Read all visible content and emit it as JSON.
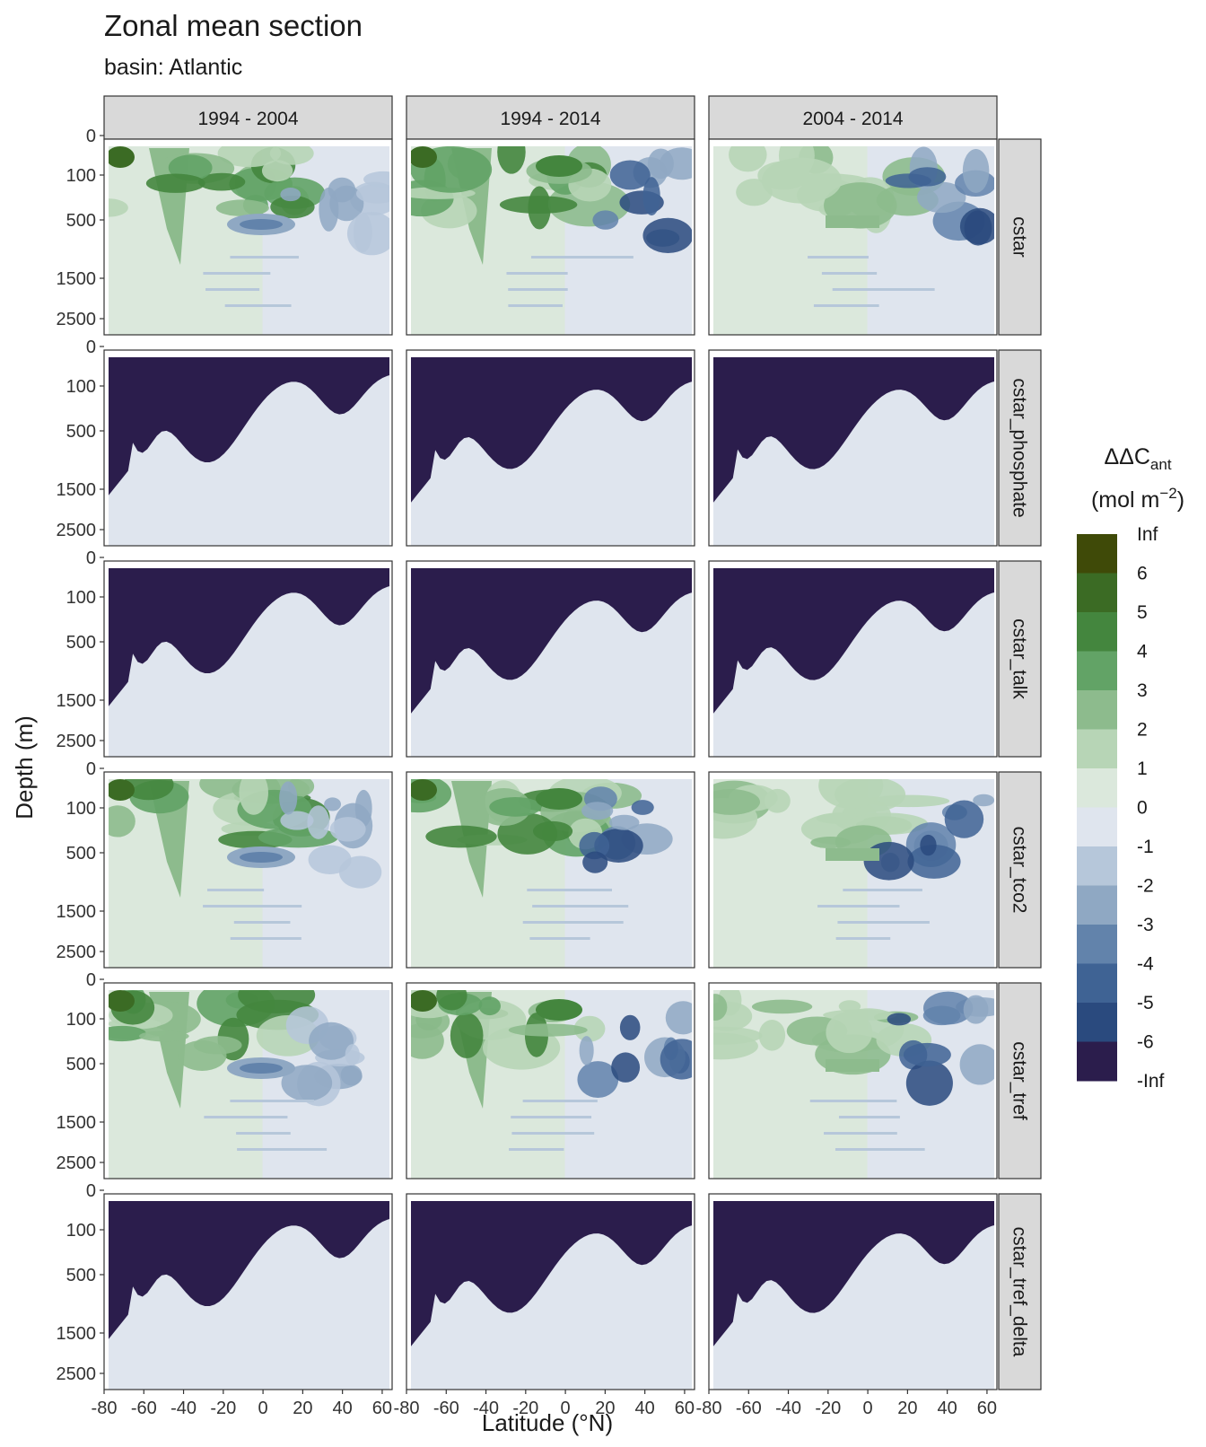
{
  "chart_data": {
    "type": "heatmap",
    "title": "Zonal mean section",
    "subtitle": "basin: Atlantic",
    "xlabel": "Latitude (°N)",
    "ylabel": "Depth (m)",
    "x_ticks": [
      "-80",
      "-60",
      "-40",
      "-20",
      "0",
      "20",
      "40",
      "60"
    ],
    "x_tick_values": [
      -80,
      -60,
      -40,
      -20,
      0,
      20,
      40,
      60
    ],
    "xlim": [
      -80,
      65
    ],
    "y_ticks": [
      "0",
      "100",
      "500",
      "1500",
      "2500"
    ],
    "y_tick_values": [
      0,
      100,
      500,
      1500,
      2500
    ],
    "y_scale": "sqrt-like (reversed)",
    "column_facets": [
      "1994 - 2004",
      "1994 - 2014",
      "2004 - 2014"
    ],
    "row_facets": [
      "cstar",
      "cstar_phosphate",
      "cstar_talk",
      "cstar_tco2",
      "cstar_tref",
      "cstar_tref_delta"
    ],
    "legend": {
      "title_main": "ΔΔC",
      "title_sub": "ant",
      "unit_prefix": "(mol m",
      "unit_sup": "−2",
      "unit_suffix": ")",
      "placement": "right",
      "breaks": [
        "Inf",
        "6",
        "5",
        "4",
        "3",
        "2",
        "1",
        "0",
        "-1",
        "-2",
        "-3",
        "-4",
        "-5",
        "-6",
        "-Inf"
      ],
      "colors": [
        "#3f4a08",
        "#3b6b24",
        "#44863e",
        "#62a366",
        "#8dbb8d",
        "#b7d5b6",
        "#dbe8dc",
        "#dfe5ee",
        "#b6c7da",
        "#8fa8c3",
        "#6283ab",
        "#3f6394",
        "#2a4a7e",
        "#2b3467",
        "#2b1d4c"
      ]
    },
    "grid": true,
    "panels_pattern": {
      "cstar": "mixed",
      "cstar_phosphate": "negative",
      "cstar_talk": "negative",
      "cstar_tco2": "mixed",
      "cstar_tref": "mixed",
      "cstar_tref_delta": "negative"
    }
  }
}
